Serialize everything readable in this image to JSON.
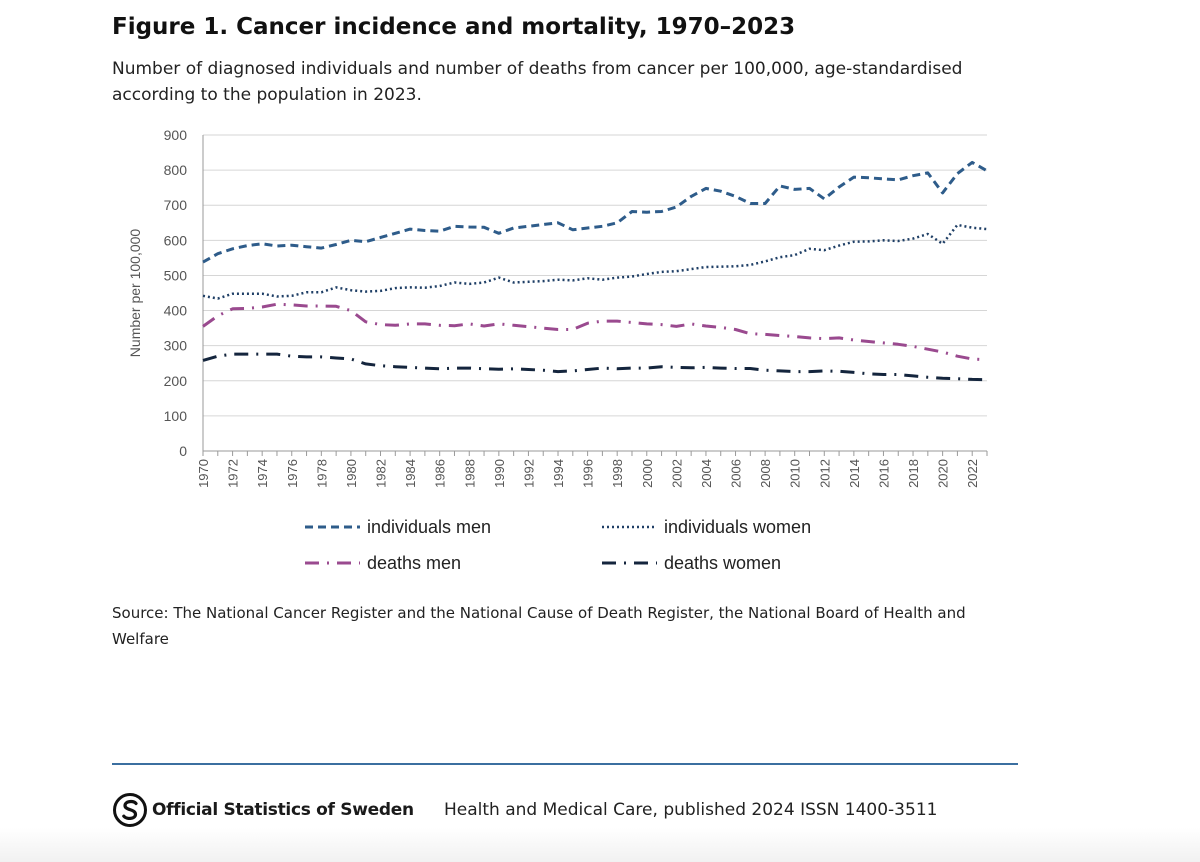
{
  "figure": {
    "title": "Figure 1. Cancer incidence and mortality, 1970–2023",
    "subtitle": "Number of diagnosed individuals and number of deaths from cancer per 100,000, age-standardised according to the population in 2023."
  },
  "chart_data": {
    "type": "line",
    "ylabel": "Number per 100,000",
    "xlabel": "",
    "ylim": [
      0,
      900
    ],
    "yticks": [
      0,
      100,
      200,
      300,
      400,
      500,
      600,
      700,
      800,
      900
    ],
    "xlim": [
      1970,
      2023
    ],
    "xtick_labels": [
      "1970",
      "1972",
      "1974",
      "1976",
      "1978",
      "1980",
      "1982",
      "1984",
      "1986",
      "1988",
      "1990",
      "1992",
      "1994",
      "1996",
      "1998",
      "2000",
      "2002",
      "2004",
      "2006",
      "2008",
      "2010",
      "2012",
      "2014",
      "2016",
      "2018",
      "2020",
      "2022"
    ],
    "grid": "horizontal",
    "legend_position": "bottom",
    "x": [
      1970,
      1971,
      1972,
      1973,
      1974,
      1975,
      1976,
      1977,
      1978,
      1979,
      1980,
      1981,
      1982,
      1983,
      1984,
      1985,
      1986,
      1987,
      1988,
      1989,
      1990,
      1991,
      1992,
      1993,
      1994,
      1995,
      1996,
      1997,
      1998,
      1999,
      2000,
      2001,
      2002,
      2003,
      2004,
      2005,
      2006,
      2007,
      2008,
      2009,
      2010,
      2011,
      2012,
      2013,
      2014,
      2015,
      2016,
      2017,
      2018,
      2019,
      2020,
      2021,
      2022,
      2023
    ],
    "series": [
      {
        "name": "individuals men",
        "color": "#2e5c8a",
        "dash": "dashed",
        "values": [
          538,
          562,
          576,
          585,
          590,
          584,
          586,
          582,
          578,
          588,
          600,
          596,
          608,
          620,
          632,
          628,
          626,
          640,
          638,
          637,
          620,
          635,
          640,
          645,
          650,
          630,
          635,
          640,
          650,
          682,
          680,
          682,
          695,
          725,
          748,
          740,
          725,
          705,
          705,
          755,
          745,
          748,
          718,
          752,
          780,
          778,
          775,
          772,
          784,
          792,
          735,
          790,
          822,
          798
        ]
      },
      {
        "name": "individuals women",
        "color": "#1f3f66",
        "dash": "dotted",
        "values": [
          442,
          434,
          448,
          448,
          448,
          440,
          442,
          452,
          452,
          466,
          458,
          454,
          456,
          464,
          466,
          465,
          470,
          480,
          476,
          480,
          494,
          480,
          482,
          484,
          488,
          486,
          492,
          488,
          494,
          497,
          504,
          510,
          512,
          518,
          524,
          525,
          526,
          530,
          540,
          552,
          558,
          576,
          572,
          585,
          596,
          597,
          600,
          598,
          605,
          618,
          590,
          644,
          636,
          632
        ]
      },
      {
        "name": "deaths men",
        "color": "#9a4a8f",
        "dash": "dash-dot",
        "values": [
          355,
          385,
          405,
          406,
          410,
          418,
          416,
          413,
          413,
          412,
          400,
          368,
          360,
          358,
          362,
          362,
          358,
          357,
          362,
          356,
          362,
          358,
          354,
          350,
          346,
          346,
          364,
          370,
          370,
          366,
          362,
          360,
          355,
          362,
          356,
          352,
          346,
          334,
          332,
          329,
          326,
          322,
          320,
          322,
          316,
          312,
          308,
          304,
          298,
          290,
          282,
          270,
          262,
          260
        ]
      },
      {
        "name": "deaths women",
        "color": "#14253d",
        "dash": "dash-dot",
        "values": [
          258,
          270,
          276,
          276,
          276,
          276,
          270,
          268,
          268,
          265,
          262,
          248,
          243,
          240,
          238,
          236,
          234,
          236,
          236,
          234,
          233,
          234,
          232,
          230,
          226,
          228,
          232,
          236,
          234,
          236,
          236,
          240,
          238,
          237,
          238,
          236,
          235,
          235,
          230,
          228,
          226,
          226,
          228,
          227,
          224,
          220,
          218,
          218,
          214,
          210,
          207,
          206,
          204,
          203
        ]
      }
    ]
  },
  "source": {
    "text": "Source: The National Cancer Register and the National Cause of Death Register, the National Board of Health and Welfare"
  },
  "footer": {
    "logo_text": "Official Statistics of Sweden",
    "publication": "Health and Medical Care, published 2024  ISSN 1400-3511",
    "logo_icon": "scb-logo-icon",
    "rule_color": "#3b6fa0"
  }
}
